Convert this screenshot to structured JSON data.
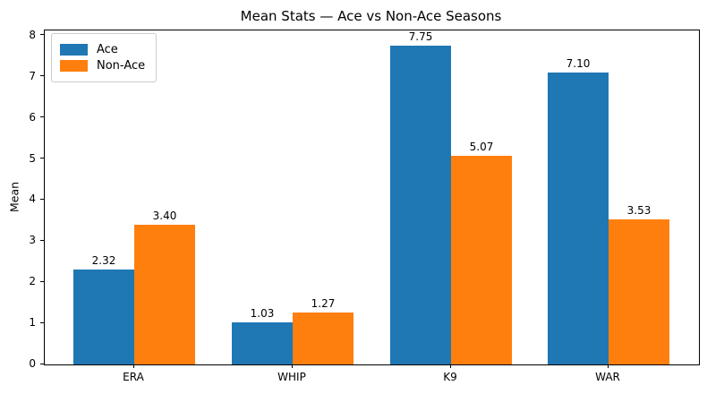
{
  "chart_data": {
    "type": "bar",
    "title": "Mean Stats — Ace vs Non-Ace Seasons",
    "xlabel": "",
    "ylabel": "Mean",
    "categories": [
      "ERA",
      "WHIP",
      "K9",
      "WAR"
    ],
    "series": [
      {
        "name": "Ace",
        "color": "#1f77b4",
        "values": [
          2.32,
          1.03,
          7.75,
          7.1
        ]
      },
      {
        "name": "Non-Ace",
        "color": "#ff7f0e",
        "values": [
          3.4,
          1.27,
          5.07,
          3.53
        ]
      }
    ],
    "value_label_decimals": 2,
    "yticks": [
      0,
      1,
      2,
      3,
      4,
      5,
      6,
      7,
      8
    ],
    "ylim": [
      0,
      8.13
    ],
    "grid": false,
    "legend_position": "upper left",
    "axis_color": "#000000",
    "background_color": "#ffffff"
  }
}
